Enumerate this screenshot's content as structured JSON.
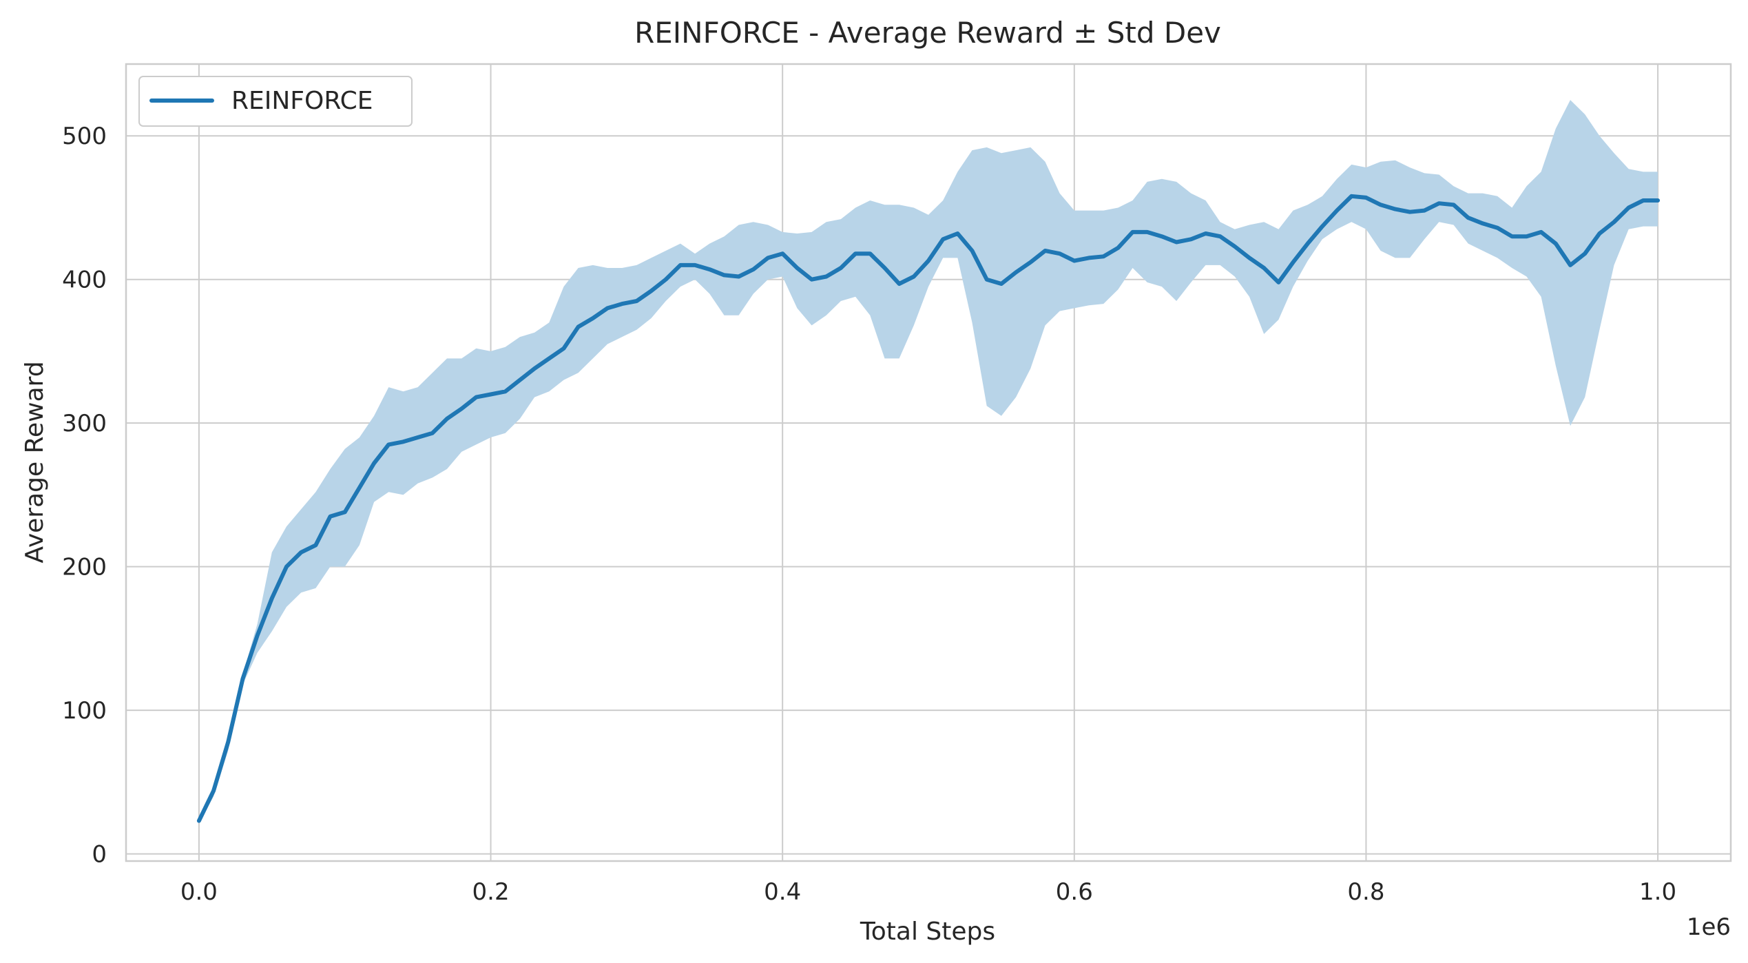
{
  "chart_data": {
    "type": "line",
    "title": "REINFORCE - Average Reward ± Std Dev",
    "xlabel": "Total Steps",
    "ylabel": "Average Reward",
    "x_offset_label": "1e6",
    "xlim": [
      -0.05,
      1.05
    ],
    "ylim": [
      -5,
      550
    ],
    "x_ticks": [
      0.0,
      0.2,
      0.4,
      0.6,
      0.8,
      1.0
    ],
    "x_tick_labels": [
      "0.0",
      "0.2",
      "0.4",
      "0.6",
      "0.8",
      "1.0"
    ],
    "y_ticks": [
      0,
      100,
      200,
      300,
      400,
      500
    ],
    "y_tick_labels": [
      "0",
      "100",
      "200",
      "300",
      "400",
      "500"
    ],
    "grid": true,
    "legend_position": "top-left",
    "colors": {
      "line": "#1f77b4",
      "band": "#b8d4e8",
      "grid": "#cccccc"
    },
    "series": [
      {
        "name": "REINFORCE",
        "x": [
          0.0,
          0.01,
          0.02,
          0.03,
          0.04,
          0.05,
          0.06,
          0.07,
          0.08,
          0.09,
          0.1,
          0.11,
          0.12,
          0.13,
          0.14,
          0.15,
          0.16,
          0.17,
          0.18,
          0.19,
          0.2,
          0.21,
          0.22,
          0.23,
          0.24,
          0.25,
          0.26,
          0.27,
          0.28,
          0.29,
          0.3,
          0.31,
          0.32,
          0.33,
          0.34,
          0.35,
          0.36,
          0.37,
          0.38,
          0.39,
          0.4,
          0.41,
          0.42,
          0.43,
          0.44,
          0.45,
          0.46,
          0.47,
          0.48,
          0.49,
          0.5,
          0.51,
          0.52,
          0.53,
          0.54,
          0.55,
          0.56,
          0.57,
          0.58,
          0.59,
          0.6,
          0.61,
          0.62,
          0.63,
          0.64,
          0.65,
          0.66,
          0.67,
          0.68,
          0.69,
          0.7,
          0.71,
          0.72,
          0.73,
          0.74,
          0.75,
          0.76,
          0.77,
          0.78,
          0.79,
          0.8,
          0.81,
          0.82,
          0.83,
          0.84,
          0.85,
          0.86,
          0.87,
          0.88,
          0.89,
          0.9,
          0.91,
          0.92,
          0.93,
          0.94,
          0.95,
          0.96,
          0.97,
          0.98,
          0.99,
          1.0
        ],
        "mean": [
          23,
          44,
          78,
          122,
          152,
          178,
          200,
          210,
          215,
          235,
          238,
          255,
          272,
          285,
          287,
          290,
          293,
          303,
          310,
          318,
          320,
          322,
          330,
          338,
          345,
          352,
          367,
          373,
          380,
          383,
          385,
          392,
          400,
          410,
          410,
          407,
          403,
          402,
          407,
          415,
          418,
          408,
          400,
          402,
          408,
          418,
          418,
          408,
          397,
          402,
          413,
          428,
          432,
          420,
          400,
          397,
          405,
          412,
          420,
          418,
          413,
          415,
          416,
          422,
          433,
          433,
          430,
          426,
          428,
          432,
          430,
          423,
          415,
          408,
          398,
          412,
          425,
          437,
          448,
          458,
          457,
          452,
          449,
          447,
          448,
          453,
          452,
          443,
          439,
          436,
          430,
          430,
          433,
          425,
          410,
          418,
          432,
          440,
          450,
          455,
          455
        ],
        "upper": [
          25,
          46,
          80,
          125,
          160,
          210,
          228,
          240,
          252,
          268,
          282,
          290,
          305,
          325,
          322,
          325,
          335,
          345,
          345,
          352,
          350,
          353,
          360,
          363,
          370,
          395,
          408,
          410,
          408,
          408,
          410,
          415,
          420,
          425,
          418,
          425,
          430,
          438,
          440,
          438,
          433,
          432,
          433,
          440,
          442,
          450,
          455,
          452,
          452,
          450,
          445,
          455,
          475,
          490,
          492,
          488,
          490,
          492,
          482,
          460,
          448,
          448,
          448,
          450,
          455,
          468,
          470,
          468,
          460,
          455,
          440,
          435,
          438,
          440,
          435,
          448,
          452,
          458,
          470,
          480,
          478,
          482,
          483,
          478,
          474,
          473,
          465,
          460,
          460,
          458,
          450,
          465,
          475,
          505,
          525,
          515,
          500,
          488,
          477,
          475,
          475
        ],
        "lower": [
          21,
          40,
          72,
          118,
          140,
          155,
          172,
          182,
          185,
          200,
          200,
          215,
          245,
          252,
          250,
          258,
          262,
          268,
          280,
          285,
          290,
          293,
          303,
          318,
          322,
          330,
          335,
          345,
          355,
          360,
          365,
          373,
          385,
          395,
          400,
          390,
          375,
          375,
          390,
          400,
          402,
          380,
          368,
          375,
          385,
          388,
          375,
          345,
          345,
          368,
          395,
          415,
          415,
          370,
          312,
          305,
          318,
          338,
          368,
          378,
          380,
          382,
          383,
          393,
          408,
          398,
          395,
          385,
          398,
          410,
          410,
          402,
          388,
          362,
          372,
          395,
          413,
          428,
          435,
          440,
          435,
          420,
          415,
          415,
          428,
          440,
          438,
          425,
          420,
          415,
          408,
          402,
          388,
          340,
          298,
          318,
          365,
          410,
          435,
          437,
          437
        ]
      }
    ]
  }
}
